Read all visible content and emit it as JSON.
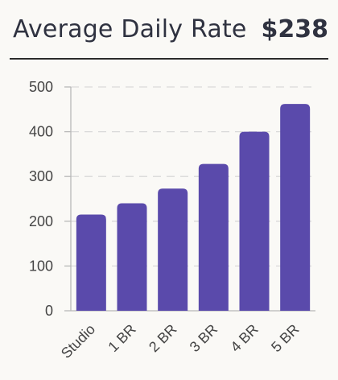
{
  "header": {
    "title": "Average Daily Rate",
    "value": "$238"
  },
  "colors": {
    "bar": "#5a4aab",
    "grid": "#d9d9d9",
    "axis": "#b8b8b8",
    "tick_label": "#444444",
    "divider": "#2b2b2b"
  },
  "chart_data": {
    "type": "bar",
    "title": "Average Daily Rate",
    "xlabel": "",
    "ylabel": "",
    "categories": [
      "Studio",
      "1 BR",
      "2 BR",
      "3 BR",
      "4 BR",
      "5 BR"
    ],
    "values": [
      215,
      240,
      273,
      328,
      400,
      462
    ],
    "ylim": [
      0,
      500
    ],
    "yticks": [
      0,
      100,
      200,
      300,
      400,
      500
    ],
    "grid": true,
    "legend": "none"
  }
}
